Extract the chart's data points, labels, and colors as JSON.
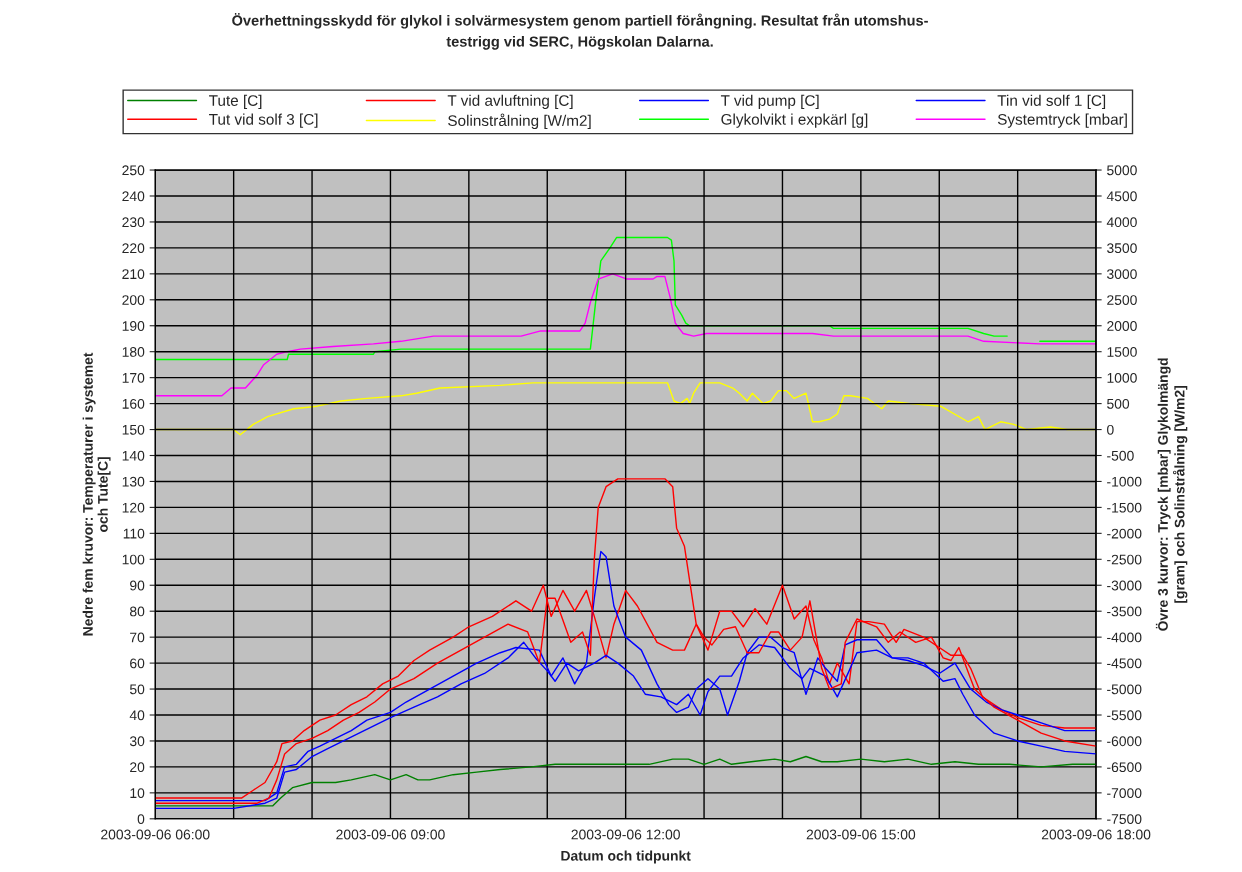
{
  "chart_data": {
    "type": "line",
    "title": "Överhettningsskydd för glykol i solvärmesystem genom partiell förångning. Resultat från utomshus-\ntestrigg vid SERC, Högskolan Dalarna.",
    "xlabel": "Datum och tidpunkt",
    "ylabel": "Nedre fem kruvor: Temperaturer i systemet\noch Tute[C]",
    "y2label": "Övre 3 kurvor: Tryck [mbar] Glykolmängd\n[gram] och Solinstrålning [W/m2]",
    "xlim": [
      "2003-09-06T06:00",
      "2003-09-06T18:00"
    ],
    "xticks": [
      {
        "value": "2003-09-06T06:00",
        "label": "2003-09-06 06:00"
      },
      {
        "value": "2003-09-06T07:00",
        "label": null
      },
      {
        "value": "2003-09-06T08:00",
        "label": null
      },
      {
        "value": "2003-09-06T09:00",
        "label": "2003-09-06 09:00"
      },
      {
        "value": "2003-09-06T10:00",
        "label": null
      },
      {
        "value": "2003-09-06T11:00",
        "label": null
      },
      {
        "value": "2003-09-06T12:00",
        "label": "2003-09-06 12:00"
      },
      {
        "value": "2003-09-06T13:00",
        "label": null
      },
      {
        "value": "2003-09-06T14:00",
        "label": null
      },
      {
        "value": "2003-09-06T15:00",
        "label": "2003-09-06 15:00"
      },
      {
        "value": "2003-09-06T16:00",
        "label": null
      },
      {
        "value": "2003-09-06T17:00",
        "label": null
      },
      {
        "value": "2003-09-06T18:00",
        "label": "2003-09-06 18:00"
      }
    ],
    "ylim": [
      0,
      250
    ],
    "yticks": [
      0,
      10,
      20,
      30,
      40,
      50,
      60,
      70,
      80,
      90,
      100,
      110,
      120,
      130,
      140,
      150,
      160,
      170,
      180,
      190,
      200,
      210,
      220,
      230,
      240,
      250
    ],
    "y2lim": [
      -7500,
      5000
    ],
    "y2ticks": [
      -7500,
      -7000,
      -6500,
      -6000,
      -5500,
      -5000,
      -4500,
      -4000,
      -3500,
      -3000,
      -2500,
      -2000,
      -1500,
      -1000,
      -500,
      0,
      500,
      1000,
      1500,
      2000,
      2500,
      3000,
      3500,
      4000,
      4500,
      5000
    ],
    "grid": true,
    "legend": "top",
    "line_style": "solid",
    "marker": "none",
    "series": [
      {
        "name": "Tute [C]",
        "color": "#008000",
        "x": [
          "2003-09-06T06:00",
          "2003-09-06T07:30",
          "2003-09-06T07:36",
          "2003-09-06T07:45",
          "2003-09-06T08:00",
          "2003-09-06T08:18",
          "2003-09-06T08:30",
          "2003-09-06T08:48",
          "2003-09-06T09:00",
          "2003-09-06T09:12",
          "2003-09-06T09:21",
          "2003-09-06T09:30",
          "2003-09-06T09:48",
          "2003-09-06T10:06",
          "2003-09-06T10:24",
          "2003-09-06T10:48",
          "2003-09-06T11:06",
          "2003-09-06T11:30",
          "2003-09-06T12:00",
          "2003-09-06T12:18",
          "2003-09-06T12:36",
          "2003-09-06T12:48",
          "2003-09-06T13:00",
          "2003-09-06T13:12",
          "2003-09-06T13:21",
          "2003-09-06T13:36",
          "2003-09-06T13:54",
          "2003-09-06T14:06",
          "2003-09-06T14:18",
          "2003-09-06T14:30",
          "2003-09-06T14:42",
          "2003-09-06T15:00",
          "2003-09-06T15:18",
          "2003-09-06T15:36",
          "2003-09-06T15:54",
          "2003-09-06T16:12",
          "2003-09-06T16:30",
          "2003-09-06T16:54",
          "2003-09-06T17:18",
          "2003-09-06T17:42",
          "2003-09-06T18:00"
        ],
        "values": [
          5,
          5,
          8,
          12,
          14,
          14,
          15,
          17,
          15,
          17,
          15,
          15,
          17,
          18,
          19,
          20,
          21,
          21,
          21,
          21,
          23,
          23,
          21,
          23,
          21,
          22,
          23,
          22,
          24,
          22,
          22,
          23,
          22,
          23,
          21,
          22,
          21,
          21,
          20,
          21,
          21
        ]
      },
      {
        "name": "T vid avluftning [C]",
        "color": "#ff0000",
        "x": [
          "2003-09-06T06:00",
          "2003-09-06T07:06",
          "2003-09-06T07:15",
          "2003-09-06T07:24",
          "2003-09-06T07:33",
          "2003-09-06T07:37",
          "2003-09-06T07:45",
          "2003-09-06T07:54",
          "2003-09-06T08:06",
          "2003-09-06T08:18",
          "2003-09-06T08:30",
          "2003-09-06T08:42",
          "2003-09-06T08:54",
          "2003-09-06T09:06",
          "2003-09-06T09:18",
          "2003-09-06T09:30",
          "2003-09-06T09:48",
          "2003-09-06T10:00",
          "2003-09-06T10:18",
          "2003-09-06T10:36",
          "2003-09-06T10:48",
          "2003-09-06T10:57",
          "2003-09-06T11:03",
          "2003-09-06T11:12",
          "2003-09-06T11:21",
          "2003-09-06T11:30",
          "2003-09-06T11:36",
          "2003-09-06T11:45",
          "2003-09-06T11:51",
          "2003-09-06T12:00",
          "2003-09-06T12:09",
          "2003-09-06T12:24",
          "2003-09-06T12:36",
          "2003-09-06T12:45",
          "2003-09-06T12:54",
          "2003-09-06T13:03",
          "2003-09-06T13:12",
          "2003-09-06T13:21",
          "2003-09-06T13:30",
          "2003-09-06T13:39",
          "2003-09-06T13:48",
          "2003-09-06T14:00",
          "2003-09-06T14:09",
          "2003-09-06T14:18",
          "2003-09-06T14:24",
          "2003-09-06T14:30",
          "2003-09-06T14:36",
          "2003-09-06T14:42",
          "2003-09-06T14:51",
          "2003-09-06T14:57",
          "2003-09-06T15:06",
          "2003-09-06T15:18",
          "2003-09-06T15:27",
          "2003-09-06T15:33",
          "2003-09-06T15:48",
          "2003-09-06T16:00",
          "2003-09-06T16:09",
          "2003-09-06T16:18",
          "2003-09-06T16:24",
          "2003-09-06T16:33",
          "2003-09-06T16:48",
          "2003-09-06T17:00",
          "2003-09-06T17:18",
          "2003-09-06T17:36",
          "2003-09-06T18:00"
        ],
        "values": [
          8,
          8,
          11,
          14,
          22,
          29,
          30,
          34,
          38,
          40,
          44,
          47,
          52,
          55,
          61,
          65,
          70,
          74,
          78,
          84,
          80,
          90,
          78,
          88,
          80,
          88,
          78,
          62,
          75,
          88,
          82,
          68,
          65,
          65,
          75,
          65,
          80,
          80,
          74,
          81,
          75,
          90,
          77,
          82,
          69,
          62,
          52,
          60,
          52,
          76,
          76,
          75,
          68,
          73,
          70,
          66,
          63,
          63,
          58,
          47,
          42,
          39,
          36,
          35,
          35
        ]
      },
      {
        "name": "T vid pump [C]",
        "color": "#0000ff",
        "x": [
          "2003-09-06T06:00",
          "2003-09-06T07:24",
          "2003-09-06T07:33",
          "2003-09-06T07:39",
          "2003-09-06T07:48",
          "2003-09-06T07:57",
          "2003-09-06T08:06",
          "2003-09-06T08:18",
          "2003-09-06T08:30",
          "2003-09-06T08:42",
          "2003-09-06T09:00",
          "2003-09-06T09:12",
          "2003-09-06T09:30",
          "2003-09-06T09:48",
          "2003-09-06T10:06",
          "2003-09-06T10:24",
          "2003-09-06T10:36",
          "2003-09-06T10:54",
          "2003-09-06T11:03",
          "2003-09-06T11:12",
          "2003-09-06T11:21",
          "2003-09-06T11:30",
          "2003-09-06T11:36",
          "2003-09-06T11:41",
          "2003-09-06T11:45",
          "2003-09-06T11:51",
          "2003-09-06T12:00",
          "2003-09-06T12:12",
          "2003-09-06T12:24",
          "2003-09-06T12:33",
          "2003-09-06T12:39",
          "2003-09-06T12:48",
          "2003-09-06T12:54",
          "2003-09-06T13:03",
          "2003-09-06T13:12",
          "2003-09-06T13:18",
          "2003-09-06T13:27",
          "2003-09-06T13:33",
          "2003-09-06T13:42",
          "2003-09-06T13:51",
          "2003-09-06T14:00",
          "2003-09-06T14:09",
          "2003-09-06T14:18",
          "2003-09-06T14:27",
          "2003-09-06T14:33",
          "2003-09-06T14:42",
          "2003-09-06T14:48",
          "2003-09-06T14:57",
          "2003-09-06T15:12",
          "2003-09-06T15:24",
          "2003-09-06T15:36",
          "2003-09-06T15:48",
          "2003-09-06T16:00",
          "2003-09-06T16:12",
          "2003-09-06T16:24",
          "2003-09-06T16:36",
          "2003-09-06T16:48",
          "2003-09-06T17:00",
          "2003-09-06T17:18",
          "2003-09-06T17:36",
          "2003-09-06T18:00"
        ],
        "values": [
          7,
          7,
          10,
          20,
          21,
          26,
          28,
          31,
          34,
          38,
          41,
          45,
          50,
          55,
          60,
          64,
          66,
          65,
          55,
          62,
          52,
          60,
          85,
          103,
          101,
          82,
          70,
          65,
          52,
          44,
          41,
          43,
          50,
          54,
          50,
          40,
          53,
          64,
          70,
          70,
          66,
          64,
          48,
          62,
          58,
          53,
          67,
          69,
          69,
          62,
          61,
          59,
          56,
          60,
          50,
          45,
          42,
          40,
          37,
          34,
          34
        ]
      },
      {
        "name": "Tin vid solf 1 [C]",
        "color": "#0000ff",
        "x": [
          "2003-09-06T06:00",
          "2003-09-06T07:00",
          "2003-09-06T07:24",
          "2003-09-06T07:33",
          "2003-09-06T07:39",
          "2003-09-06T07:48",
          "2003-09-06T08:00",
          "2003-09-06T08:12",
          "2003-09-06T08:24",
          "2003-09-06T08:36",
          "2003-09-06T08:48",
          "2003-09-06T09:00",
          "2003-09-06T09:18",
          "2003-09-06T09:36",
          "2003-09-06T09:54",
          "2003-09-06T10:12",
          "2003-09-06T10:30",
          "2003-09-06T10:42",
          "2003-09-06T10:51",
          "2003-09-06T11:00",
          "2003-09-06T11:06",
          "2003-09-06T11:15",
          "2003-09-06T11:24",
          "2003-09-06T11:36",
          "2003-09-06T11:45",
          "2003-09-06T11:54",
          "2003-09-06T12:06",
          "2003-09-06T12:15",
          "2003-09-06T12:27",
          "2003-09-06T12:39",
          "2003-09-06T12:48",
          "2003-09-06T12:57",
          "2003-09-06T13:03",
          "2003-09-06T13:12",
          "2003-09-06T13:21",
          "2003-09-06T13:30",
          "2003-09-06T13:42",
          "2003-09-06T13:54",
          "2003-09-06T14:06",
          "2003-09-06T14:15",
          "2003-09-06T14:21",
          "2003-09-06T14:33",
          "2003-09-06T14:42",
          "2003-09-06T14:51",
          "2003-09-06T14:57",
          "2003-09-06T15:12",
          "2003-09-06T15:24",
          "2003-09-06T15:36",
          "2003-09-06T15:48",
          "2003-09-06T16:03",
          "2003-09-06T16:12",
          "2003-09-06T16:18",
          "2003-09-06T16:27",
          "2003-09-06T16:42",
          "2003-09-06T17:00",
          "2003-09-06T17:18",
          "2003-09-06T17:36",
          "2003-09-06T18:00"
        ],
        "values": [
          4,
          4,
          6,
          8,
          18,
          19,
          24,
          27,
          30,
          33,
          36,
          39,
          43,
          47,
          52,
          56,
          62,
          68,
          62,
          57,
          53,
          60,
          57,
          60,
          63,
          60,
          55,
          48,
          47,
          44,
          48,
          40,
          49,
          55,
          55,
          62,
          67,
          66,
          58,
          54,
          58,
          55,
          47,
          57,
          64,
          65,
          62,
          62,
          60,
          53,
          54,
          48,
          40,
          33,
          30,
          28,
          26,
          25
        ]
      },
      {
        "name": "Tut vid solf 3 [C]",
        "color": "#ff0000",
        "x": [
          "2003-09-06T06:00",
          "2003-09-06T07:18",
          "2003-09-06T07:27",
          "2003-09-06T07:33",
          "2003-09-06T07:39",
          "2003-09-06T07:48",
          "2003-09-06T08:00",
          "2003-09-06T08:12",
          "2003-09-06T08:24",
          "2003-09-06T08:36",
          "2003-09-06T08:48",
          "2003-09-06T09:00",
          "2003-09-06T09:18",
          "2003-09-06T09:36",
          "2003-09-06T09:54",
          "2003-09-06T10:12",
          "2003-09-06T10:30",
          "2003-09-06T10:45",
          "2003-09-06T10:54",
          "2003-09-06T11:00",
          "2003-09-06T11:06",
          "2003-09-06T11:18",
          "2003-09-06T11:27",
          "2003-09-06T11:33",
          "2003-09-06T11:36",
          "2003-09-06T11:39",
          "2003-09-06T11:45",
          "2003-09-06T11:54",
          "2003-09-06T12:30",
          "2003-09-06T12:36",
          "2003-09-06T12:39",
          "2003-09-06T12:45",
          "2003-09-06T12:54",
          "2003-09-06T13:00",
          "2003-09-06T13:06",
          "2003-09-06T13:15",
          "2003-09-06T13:24",
          "2003-09-06T13:33",
          "2003-09-06T13:42",
          "2003-09-06T13:51",
          "2003-09-06T13:57",
          "2003-09-06T14:06",
          "2003-09-06T14:15",
          "2003-09-06T14:21",
          "2003-09-06T14:30",
          "2003-09-06T14:36",
          "2003-09-06T14:45",
          "2003-09-06T14:48",
          "2003-09-06T14:57",
          "2003-09-06T15:12",
          "2003-09-06T15:21",
          "2003-09-06T15:30",
          "2003-09-06T15:42",
          "2003-09-06T15:54",
          "2003-09-06T16:03",
          "2003-09-06T16:09",
          "2003-09-06T16:15",
          "2003-09-06T16:27",
          "2003-09-06T16:42",
          "2003-09-06T17:00",
          "2003-09-06T17:18",
          "2003-09-06T17:36",
          "2003-09-06T18:00"
        ],
        "values": [
          6,
          6,
          8,
          15,
          25,
          29,
          31,
          34,
          38,
          41,
          45,
          50,
          54,
          60,
          65,
          70,
          75,
          72,
          60,
          85,
          85,
          68,
          72,
          63,
          100,
          120,
          128,
          131,
          131,
          128,
          112,
          105,
          75,
          70,
          67,
          73,
          74,
          64,
          64,
          72,
          72,
          65,
          70,
          84,
          58,
          50,
          52,
          68,
          77,
          74,
          68,
          72,
          68,
          70,
          62,
          61,
          66,
          50,
          43,
          38,
          33,
          30,
          28
        ]
      },
      {
        "name": "Solinstrålning [W/m2]",
        "color": "#ffff00",
        "axis": "y2",
        "x": [
          "2003-09-06T06:00",
          "2003-09-06T07:00",
          "2003-09-06T07:05",
          "2003-09-06T07:15",
          "2003-09-06T07:26",
          "2003-09-06T07:46",
          "2003-09-06T08:04",
          "2003-09-06T08:22",
          "2003-09-06T08:42",
          "2003-09-06T09:08",
          "2003-09-06T09:20",
          "2003-09-06T09:38",
          "2003-09-06T10:24",
          "2003-09-06T10:49",
          "2003-09-06T12:32",
          "2003-09-06T12:37",
          "2003-09-06T12:42",
          "2003-09-06T12:47",
          "2003-09-06T12:49",
          "2003-09-06T12:52",
          "2003-09-06T12:57",
          "2003-09-06T13:12",
          "2003-09-06T13:22",
          "2003-09-06T13:27",
          "2003-09-06T13:33",
          "2003-09-06T13:37",
          "2003-09-06T13:45",
          "2003-09-06T13:51",
          "2003-09-06T13:57",
          "2003-09-06T14:03",
          "2003-09-06T14:09",
          "2003-09-06T14:18",
          "2003-09-06T14:23",
          "2003-09-06T14:28",
          "2003-09-06T14:36",
          "2003-09-06T14:42",
          "2003-09-06T14:47",
          "2003-09-06T14:52",
          "2003-09-06T15:05",
          "2003-09-06T15:16",
          "2003-09-06T15:21",
          "2003-09-06T15:38",
          "2003-09-06T16:01",
          "2003-09-06T16:22",
          "2003-09-06T16:30",
          "2003-09-06T16:35",
          "2003-09-06T16:47",
          "2003-09-06T16:57",
          "2003-09-06T17:07",
          "2003-09-06T17:25",
          "2003-09-06T17:38",
          "2003-09-06T18:00"
        ],
        "values": [
          0,
          0,
          -100,
          100,
          250,
          400,
          450,
          550,
          600,
          650,
          700,
          800,
          850,
          900,
          900,
          550,
          500,
          600,
          500,
          700,
          900,
          900,
          800,
          700,
          550,
          700,
          500,
          550,
          750,
          750,
          600,
          700,
          150,
          150,
          200,
          300,
          650,
          650,
          600,
          400,
          550,
          500,
          450,
          150,
          250,
          0,
          150,
          100,
          0,
          50,
          0,
          0
        ]
      },
      {
        "name": "Glykolvikt i expkärl [g]",
        "color": "#00ff00",
        "axis": "y2",
        "x": [
          "2003-09-06T06:00",
          "2003-09-06T07:41",
          "2003-09-06T07:42",
          "2003-09-06T08:47",
          "2003-09-06T08:48",
          "2003-09-06T09:08",
          "2003-09-06T11:31",
          "2003-09-06T11:33",
          "2003-09-06T11:37",
          "2003-09-06T11:41",
          "2003-09-06T11:48",
          "2003-09-06T11:53",
          "2003-09-06T12:32",
          "2003-09-06T12:35",
          "2003-09-06T12:37",
          "2003-09-06T12:38",
          "2003-09-06T12:43",
          "2003-09-06T12:46",
          "2003-09-06T12:49",
          "2003-09-06T14:36",
          "2003-09-06T14:39",
          "2003-09-06T16:22",
          "2003-09-06T16:34",
          "2003-09-06T16:42",
          "2003-09-06T16:52",
          "2003-09-06T17:00",
          "2003-09-06T17:17",
          "2003-09-06T17:40",
          "2003-09-06T18:00"
        ],
        "values": [
          1350,
          1350,
          1450,
          1450,
          1500,
          1550,
          1550,
          1550,
          2450,
          3250,
          3500,
          3700,
          3700,
          3650,
          3250,
          2400,
          2200,
          2050,
          2000,
          2000,
          1950,
          1950,
          1850,
          1800,
          1800,
          null,
          1700,
          1700,
          1700
        ]
      },
      {
        "name": "Systemtryck [mbar]",
        "color": "#ff00ff",
        "axis": "y2",
        "x": [
          "2003-09-06T06:00",
          "2003-09-06T06:51",
          "2003-09-06T06:58",
          "2003-09-06T07:09",
          "2003-09-06T07:18",
          "2003-09-06T07:23",
          "2003-09-06T07:33",
          "2003-09-06T07:41",
          "2003-09-06T07:51",
          "2003-09-06T08:16",
          "2003-09-06T08:47",
          "2003-09-06T09:08",
          "2003-09-06T09:33",
          "2003-09-06T10:40",
          "2003-09-06T10:55",
          "2003-09-06T11:25",
          "2003-09-06T11:29",
          "2003-09-06T11:33",
          "2003-09-06T11:39",
          "2003-09-06T11:50",
          "2003-09-06T12:01",
          "2003-09-06T12:21",
          "2003-09-06T12:24",
          "2003-09-06T12:30",
          "2003-09-06T12:34",
          "2003-09-06T12:38",
          "2003-09-06T12:44",
          "2003-09-06T12:52",
          "2003-09-06T13:02",
          "2003-09-06T14:23",
          "2003-09-06T14:39",
          "2003-09-06T16:22",
          "2003-09-06T16:34",
          "2003-09-06T17:17",
          "2003-09-06T18:00"
        ],
        "values": [
          650,
          650,
          800,
          800,
          1050,
          1250,
          1450,
          1500,
          1550,
          1600,
          1650,
          1700,
          1800,
          1800,
          1900,
          1900,
          2050,
          2450,
          2900,
          3000,
          2900,
          2900,
          2950,
          2950,
          2550,
          2050,
          1850,
          1800,
          1850,
          1850,
          1800,
          1800,
          1700,
          1650,
          1650
        ]
      }
    ]
  }
}
